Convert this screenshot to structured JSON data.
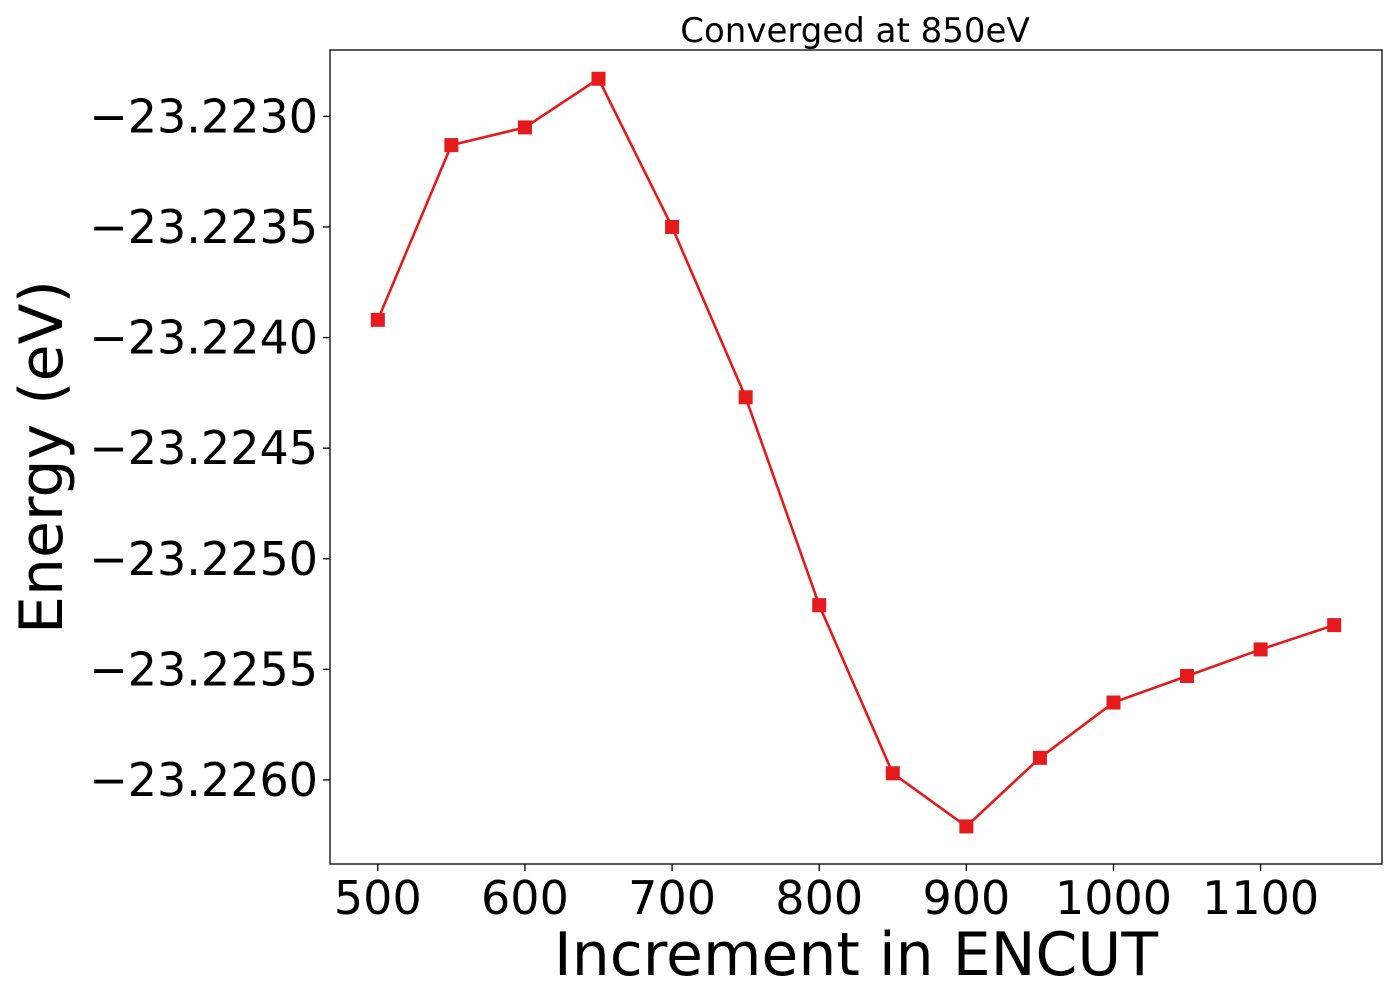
{
  "chart_data": {
    "type": "line",
    "title": "Converged at 850eV",
    "xlabel": "Increment in ENCUT",
    "ylabel": "Energy (eV)",
    "xlim": [
      467.5,
      1182.5
    ],
    "ylim": [
      -23.22638,
      -23.2227
    ],
    "x_ticks": [
      500,
      600,
      700,
      800,
      900,
      1000,
      1100
    ],
    "x_tick_labels": [
      "500",
      "600",
      "700",
      "800",
      "900",
      "1000",
      "1100"
    ],
    "y_ticks": [
      -23.223,
      -23.2235,
      -23.224,
      -23.2245,
      -23.225,
      -23.2255,
      -23.226
    ],
    "y_tick_labels": [
      "−23.2230",
      "−23.2235",
      "−23.2240",
      "−23.2245",
      "−23.2250",
      "−23.2255",
      "−23.2260"
    ],
    "grid": false,
    "series": [
      {
        "color": "#e41a1c",
        "marker": "square",
        "x": [
          500,
          550,
          600,
          650,
          700,
          750,
          800,
          850,
          900,
          950,
          1000,
          1050,
          1100,
          1150
        ],
        "y": [
          -23.22392,
          -23.22313,
          -23.22305,
          -23.22283,
          -23.2235,
          -23.22427,
          -23.22521,
          -23.22597,
          -23.22621,
          -23.2259,
          -23.22565,
          -23.22553,
          -23.22541,
          -23.2253
        ]
      }
    ]
  }
}
